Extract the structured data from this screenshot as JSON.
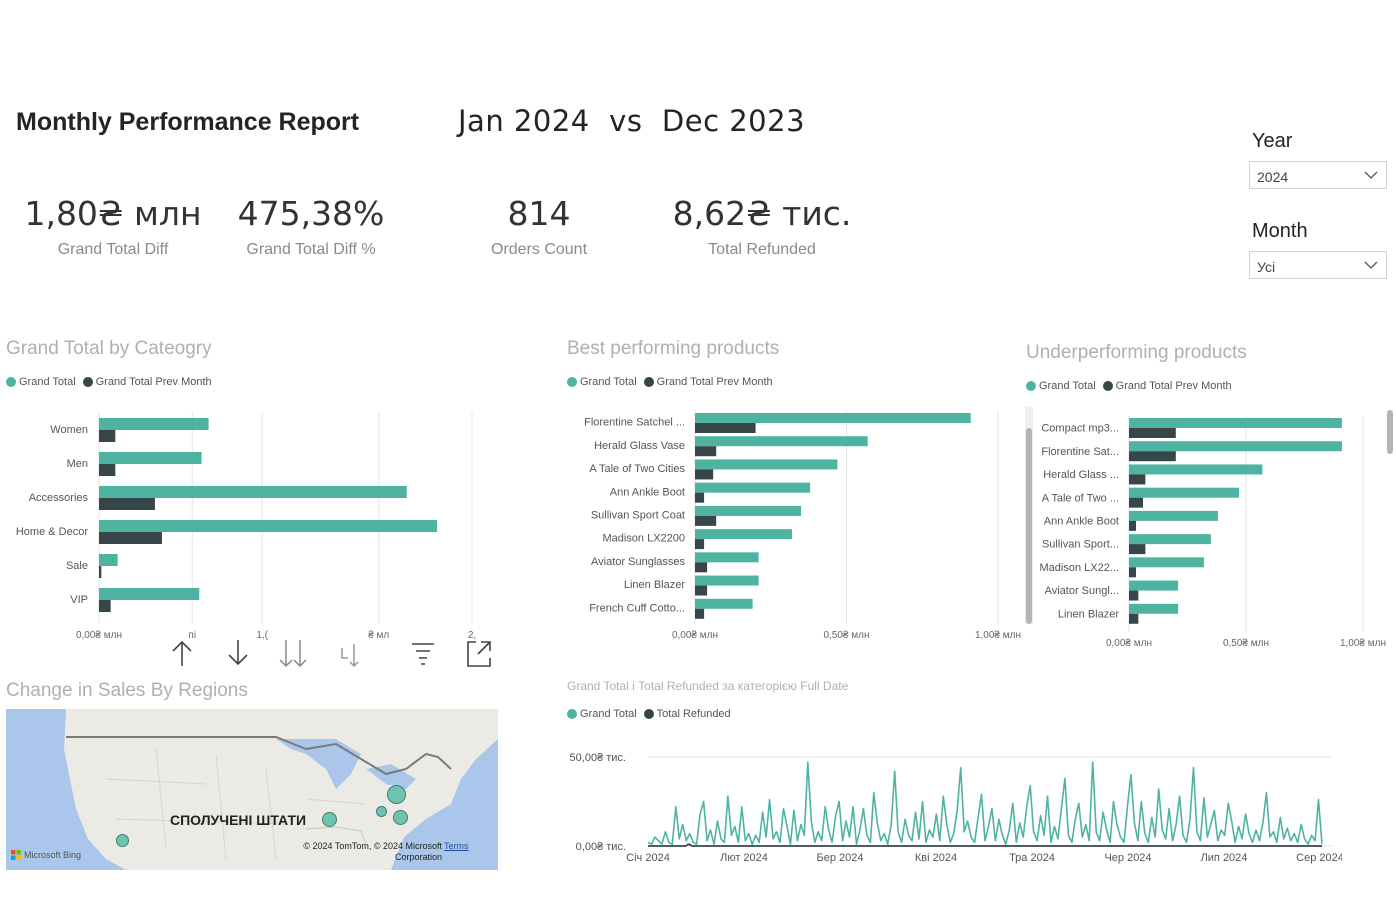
{
  "header": {
    "title": "Monthly Performance Report",
    "period_current": "Jan 2024",
    "period_vs": "vs",
    "period_previous": "Dec 2023"
  },
  "kpis": [
    {
      "value": "1,80₴ млн",
      "label": "Grand Total Diff"
    },
    {
      "value": "475,38%",
      "label": "Grand Total Diff %"
    },
    {
      "value": "814",
      "label": "Orders Count"
    },
    {
      "value": "8,62₴ тис.",
      "label": "Total Refunded"
    }
  ],
  "slicers": {
    "year": {
      "label": "Year",
      "value": "2024"
    },
    "month": {
      "label": "Month",
      "value": "Усі"
    }
  },
  "colors": {
    "teal": "#4fb3a2",
    "dark": "#374649"
  },
  "sections": {
    "category": {
      "title": "Grand Total by Cateogry"
    },
    "best": {
      "title": "Best performing products"
    },
    "under": {
      "title": "Underperforming products"
    },
    "regions": {
      "title": "Change in Sales By Regions"
    },
    "timeline": {
      "title": "Grand Total і Total Refunded за категорією Full Date"
    }
  },
  "legend": {
    "grand_total": "Grand Total",
    "prev_month": "Grand Total Prev Month",
    "total_refunded": "Total Refunded"
  },
  "map": {
    "country_label": "СПОЛУЧЕНІ ШТАТИ",
    "attribution": "© 2024 TomTom, © 2024 Microsoft Corporation",
    "terms": "Terms",
    "bing": "Microsoft Bing"
  },
  "toolbar_icons": [
    "arrow-up-icon",
    "arrow-down-icon",
    "double-arrow-down-icon",
    "expand-hierarchy-icon",
    "filter-icon",
    "focus-mode-icon"
  ],
  "chart_data": [
    {
      "id": "category",
      "type": "bar",
      "orientation": "horizontal",
      "categories": [
        "Women",
        "Men",
        "Accessories",
        "Home & Decor",
        "Sale",
        "VIP"
      ],
      "series": [
        {
          "name": "Grand Total",
          "values": [
            0.47,
            0.44,
            1.32,
            1.45,
            0.08,
            0.43
          ]
        },
        {
          "name": "Grand Total Prev Month",
          "values": [
            0.07,
            0.07,
            0.24,
            0.27,
            0.01,
            0.05
          ]
        }
      ],
      "xlim": [
        0,
        1.6
      ],
      "tick_labels": [
        "0,00₴ млн",
        "пі",
        "1,(",
        "₴ мл",
        "2,"
      ],
      "tick_values": [
        0,
        0.4,
        0.7,
        1.2,
        1.6
      ]
    },
    {
      "id": "best",
      "type": "bar",
      "orientation": "horizontal",
      "categories": [
        "Florentine Satchel ...",
        "Herald Glass Vase",
        "A Tale of Two Cities",
        "Ann Ankle Boot",
        "Sullivan Sport Coat",
        "Madison LX2200",
        "Aviator Sunglasses",
        "Linen Blazer",
        "French Cuff Cotto..."
      ],
      "series": [
        {
          "name": "Grand Total",
          "values": [
            0.91,
            0.57,
            0.47,
            0.38,
            0.35,
            0.32,
            0.21,
            0.21,
            0.19
          ]
        },
        {
          "name": "Grand Total Prev Month",
          "values": [
            0.2,
            0.07,
            0.06,
            0.03,
            0.07,
            0.03,
            0.04,
            0.04,
            0.03
          ]
        }
      ],
      "xlim": [
        0,
        1.0
      ],
      "tick_labels": [
        "0,00₴ млн",
        "0,50₴ млн",
        "1,00₴ млн"
      ],
      "tick_values": [
        0,
        0.5,
        1.0
      ]
    },
    {
      "id": "under",
      "type": "bar",
      "orientation": "horizontal",
      "categories": [
        "Compact mp3...",
        "Florentine Sat...",
        "Herald Glass ...",
        "A Tale of Two ...",
        "Ann Ankle Boot",
        "Sullivan Sport...",
        "Madison LX22...",
        "Aviator Sungl...",
        "Linen Blazer"
      ],
      "series": [
        {
          "name": "Grand Total",
          "values": [
            0.91,
            0.91,
            0.57,
            0.47,
            0.38,
            0.35,
            0.32,
            0.21,
            0.21
          ]
        },
        {
          "name": "Grand Total Prev Month",
          "values": [
            0.2,
            0.2,
            0.07,
            0.06,
            0.03,
            0.07,
            0.03,
            0.04,
            0.04
          ]
        }
      ],
      "xlim": [
        0,
        1.0
      ],
      "tick_labels": [
        "0,00₴ млн",
        "0,50₴ млн",
        "1,00₴ млн"
      ],
      "tick_values": [
        0,
        0.5,
        1.0
      ]
    },
    {
      "id": "timeline",
      "type": "line",
      "x_tick_labels": [
        "Січ 2024",
        "Лют 2024",
        "Бер 2024",
        "Кві 2024",
        "Тра 2024",
        "Чер 2024",
        "Лип 2024",
        "Сер 2024"
      ],
      "y_tick_labels": [
        "0,00₴ тис.",
        "50,00₴ тис."
      ],
      "ylim": [
        0,
        50
      ],
      "series": [
        {
          "name": "Grand Total",
          "values": [
            2,
            1,
            5,
            3,
            1,
            8,
            2,
            1,
            22,
            4,
            12,
            3,
            7,
            2,
            1,
            18,
            25,
            3,
            9,
            1,
            14,
            4,
            2,
            28,
            6,
            11,
            2,
            22,
            3,
            7,
            1,
            6,
            2,
            19,
            5,
            26,
            4,
            8,
            2,
            21,
            11,
            1,
            20,
            3,
            12,
            6,
            47,
            14,
            2,
            8,
            3,
            22,
            9,
            2,
            17,
            25,
            3,
            14,
            5,
            22,
            1,
            9,
            21,
            6,
            2,
            30,
            13,
            3,
            7,
            1,
            12,
            42,
            8,
            2,
            15,
            6,
            3,
            19,
            4,
            25,
            2,
            9,
            5,
            18,
            3,
            28,
            12,
            2,
            7,
            20,
            44,
            8,
            14,
            5,
            2,
            16,
            29,
            3,
            11,
            21,
            3,
            15,
            6,
            1,
            9,
            24,
            2,
            13,
            5,
            22,
            34,
            8,
            3,
            17,
            6,
            28,
            2,
            11,
            4,
            21,
            38,
            6,
            2,
            15,
            24,
            5,
            12,
            3,
            47,
            8,
            3,
            19,
            9,
            2,
            25,
            12,
            5,
            2,
            22,
            40,
            13,
            3,
            25,
            7,
            2,
            16,
            5,
            32,
            9,
            4,
            21,
            3,
            12,
            28,
            6,
            2,
            15,
            44,
            8,
            3,
            27,
            5,
            12,
            20,
            3,
            9,
            6,
            24,
            14,
            2,
            11,
            4,
            18,
            7,
            2,
            9,
            3,
            13,
            30,
            5,
            8,
            2,
            16,
            4,
            10,
            3,
            7,
            2,
            12,
            4,
            1,
            6,
            3,
            26,
            1
          ]
        },
        {
          "name": "Total Refunded",
          "values": [
            0,
            0,
            0,
            0,
            0,
            0,
            0,
            0,
            0,
            0,
            0,
            0,
            1,
            0,
            0,
            0,
            0,
            0,
            0,
            0,
            0,
            0,
            0,
            0,
            0,
            0,
            0,
            0,
            0,
            0,
            0,
            0,
            0,
            0,
            0,
            0,
            0,
            0,
            0,
            0,
            0,
            0,
            0,
            0,
            0,
            0,
            0,
            0,
            0,
            0,
            0,
            0,
            0,
            0,
            0,
            0,
            0,
            0,
            0,
            0,
            0,
            0,
            0,
            0,
            0,
            0,
            0,
            0,
            0,
            0,
            0,
            0,
            0,
            0,
            0,
            0,
            0,
            0,
            0,
            0,
            0,
            0,
            0,
            0,
            0,
            0,
            0,
            0,
            0,
            0,
            0,
            0,
            0,
            0,
            0,
            0,
            0,
            0,
            0,
            0,
            0,
            0,
            0,
            0,
            0,
            0,
            0,
            0,
            0,
            0,
            0,
            0,
            0,
            0,
            0,
            0,
            0,
            0,
            0,
            0,
            0,
            0,
            0,
            0,
            0,
            0,
            0,
            0,
            0,
            0,
            0,
            0,
            0,
            0,
            0,
            0,
            0,
            0,
            0,
            0,
            0,
            0,
            0,
            0,
            0,
            0,
            0,
            0,
            0,
            0,
            0,
            0,
            0,
            0,
            0,
            0,
            0,
            0,
            0,
            0,
            0,
            0,
            0,
            0,
            0,
            0,
            0,
            0,
            0,
            0,
            0,
            0,
            0,
            0,
            0,
            0,
            0,
            0,
            0,
            0,
            0,
            0,
            0,
            0,
            0,
            0,
            0,
            0,
            0,
            0,
            0,
            0,
            0,
            0,
            0,
            0,
            0,
            0,
            0
          ]
        }
      ]
    }
  ]
}
